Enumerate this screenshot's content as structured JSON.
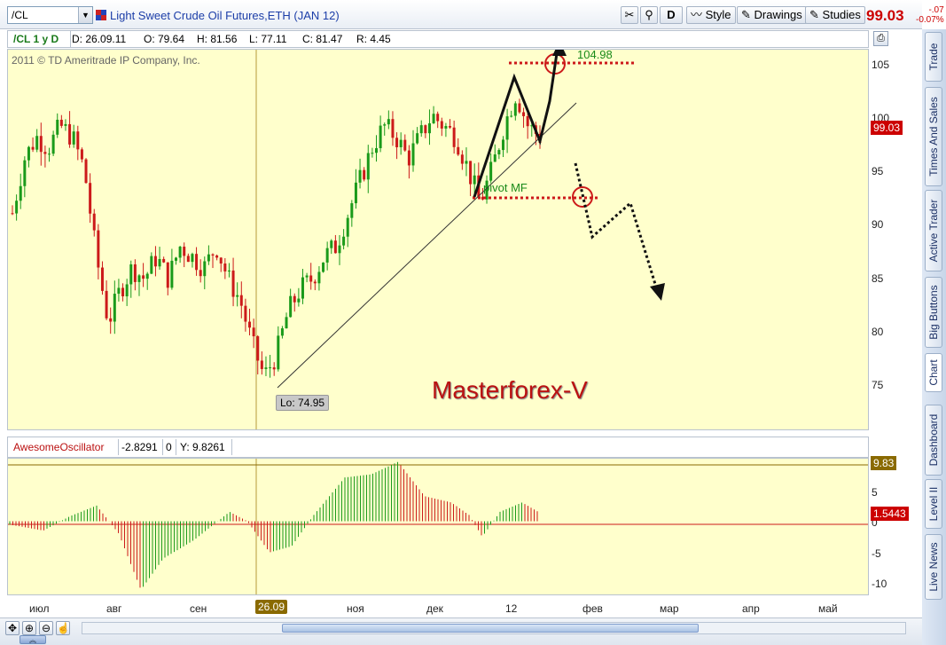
{
  "toolbar": {
    "symbol": "/CL",
    "instrument_title": "Light Sweet Crude Oil Futures,ETH (JAN 12)",
    "buttons": {
      "d": "D",
      "style": "Style",
      "drawings": "Drawings",
      "studies": "Studies"
    },
    "last_price": "99.03",
    "change": "-.07",
    "change_pct": "-0.07%"
  },
  "info_bar": {
    "symbol_period": "/CL 1 y D",
    "date": "D: 26.09.11",
    "open": "O: 79.64",
    "high": "H: 81.56",
    "low": "L: 77.11",
    "close": "C: 81.47",
    "range": "R: 4.45"
  },
  "chart": {
    "copyright": "2011 © TD Ameritrade IP Company, Inc.",
    "target_label": "104.98",
    "pivot_label": "pivot MF",
    "low_label": "Lo: 74.95",
    "watermark": "Masterforex-V",
    "current_price_tag": "99.03",
    "price_ticks": [
      "105",
      "100",
      "95",
      "90",
      "85",
      "80",
      "75"
    ]
  },
  "oscillator": {
    "name": "AwesomeOscillator",
    "value": "-2.8291",
    "zero": "0",
    "y_value": "Y: 9.8261",
    "max_tag": "9.83",
    "value_tag": "1.5443",
    "ticks": [
      "5",
      "0",
      "-5",
      "-10"
    ]
  },
  "time_axis": {
    "labels": [
      "июл",
      "авг",
      "сен",
      "26.09",
      "ноя",
      "дек",
      "12",
      "фев",
      "мар",
      "апр",
      "май"
    ]
  },
  "side_tabs": [
    "Trade",
    "Times And Sales",
    "Active Trader",
    "Big Buttons",
    "Chart",
    "Dashboard",
    "Level II",
    "Live News"
  ],
  "colors": {
    "up_candle": "#1a9a1a",
    "down_candle": "#cc1a1a",
    "chart_bg": "#ffffcc",
    "price_tag": "#cc0000",
    "max_tag": "#8a6a00"
  },
  "chart_data": {
    "type": "candlestick",
    "symbol": "/CL",
    "ylim": [
      72,
      107
    ],
    "y_ticks": [
      75,
      80,
      85,
      90,
      95,
      100,
      105
    ],
    "x_labels": [
      "июл",
      "авг",
      "сен",
      "26.09",
      "ноя",
      "дек",
      "12",
      "фев",
      "мар",
      "апр",
      "май"
    ],
    "close_path": [
      [
        "июл",
        92
      ],
      [
        "июл",
        97
      ],
      [
        "июл",
        99
      ],
      [
        "июл",
        98
      ],
      [
        "июл",
        100
      ],
      [
        "июл",
        99
      ],
      [
        "авг",
        96
      ],
      [
        "авг",
        88
      ],
      [
        "авг",
        82
      ],
      [
        "авг",
        85
      ],
      [
        "авг",
        87
      ],
      [
        "авг",
        86
      ],
      [
        "авг",
        88
      ],
      [
        "авг",
        86
      ],
      [
        "сен",
        89
      ],
      [
        "сен",
        88
      ],
      [
        "сен",
        87
      ],
      [
        "сен",
        89
      ],
      [
        "сен",
        86
      ],
      [
        "сен",
        84
      ],
      [
        "сен",
        80
      ],
      [
        "сен",
        77
      ],
      [
        "26.09",
        79
      ],
      [
        "26.09",
        83
      ],
      [
        "26.09",
        85
      ],
      [
        "26.09",
        86
      ],
      [
        "26.09",
        88
      ],
      [
        "26.09",
        89
      ],
      [
        "ноя",
        92
      ],
      [
        "ноя",
        95
      ],
      [
        "ноя",
        98
      ],
      [
        "ноя",
        100
      ],
      [
        "ноя",
        99
      ],
      [
        "ноя",
        97
      ],
      [
        "ноя",
        99
      ],
      [
        "ноя",
        101
      ],
      [
        "дек",
        100
      ],
      [
        "дек",
        99
      ],
      [
        "дек",
        96
      ],
      [
        "дек",
        93
      ],
      [
        "дек",
        96
      ],
      [
        "дек",
        100
      ],
      [
        "дек",
        103
      ],
      [
        "дек",
        100
      ],
      [
        "дек",
        99
      ]
    ],
    "low_marker": 74.95,
    "target_level": 104.98,
    "current": 99.03,
    "oscillator": {
      "name": "AwesomeOscillator",
      "ylim": [
        -12,
        10
      ],
      "y_ticks": [
        5,
        0,
        -5,
        -10
      ],
      "max": 9.83,
      "last": 1.5443
    }
  }
}
